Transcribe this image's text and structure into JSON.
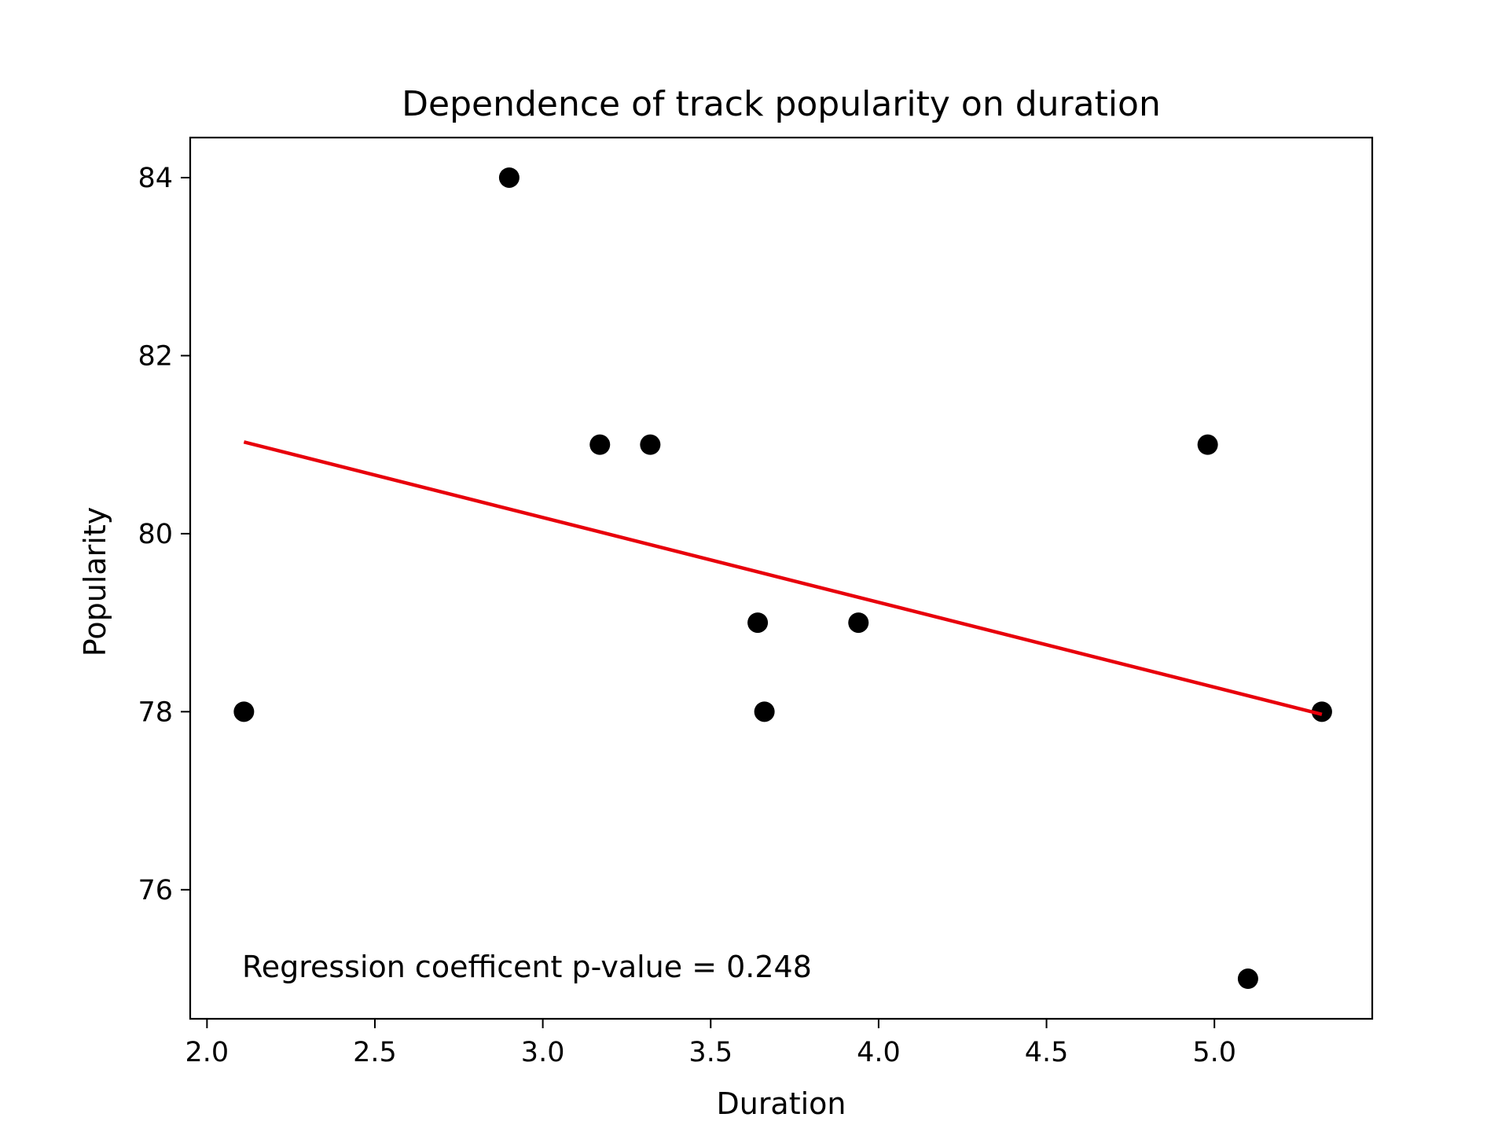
{
  "chart_data": {
    "type": "scatter",
    "title": "Dependence of track popularity on duration",
    "xlabel": "Duration",
    "ylabel": "Popularity",
    "xlim": [
      1.95,
      5.47
    ],
    "ylim": [
      74.55,
      84.45
    ],
    "xticks": [
      2.0,
      2.5,
      3.0,
      3.5,
      4.0,
      4.5,
      5.0
    ],
    "xtick_labels": [
      "2.0",
      "2.5",
      "3.0",
      "3.5",
      "4.0",
      "4.5",
      "5.0"
    ],
    "yticks": [
      76,
      78,
      80,
      82,
      84
    ],
    "ytick_labels": [
      "76",
      "78",
      "80",
      "82",
      "84"
    ],
    "grid": false,
    "series": [
      {
        "points": [
          {
            "x": 2.11,
            "y": 78
          },
          {
            "x": 2.9,
            "y": 84
          },
          {
            "x": 3.17,
            "y": 81
          },
          {
            "x": 3.32,
            "y": 81
          },
          {
            "x": 3.64,
            "y": 79
          },
          {
            "x": 3.66,
            "y": 78
          },
          {
            "x": 3.94,
            "y": 79
          },
          {
            "x": 4.98,
            "y": 81
          },
          {
            "x": 5.1,
            "y": 75
          },
          {
            "x": 5.32,
            "y": 78
          }
        ],
        "color": "#000000"
      }
    ],
    "regression_line": {
      "x": [
        2.11,
        5.32
      ],
      "y": [
        81.03,
        77.97
      ],
      "color": "#e8000b"
    },
    "annotation": "Regression coefficent p-value = 0.248"
  }
}
